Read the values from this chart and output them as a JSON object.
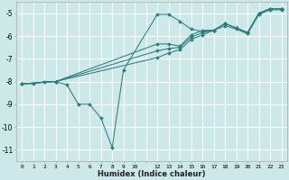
{
  "xlabel": "Humidex (Indice chaleur)",
  "bg_color": "#cce8e8",
  "grid_color": "#ffffff",
  "line_color": "#2e7d7d",
  "xlim": [
    -0.5,
    23.5
  ],
  "ylim": [
    -11.5,
    -4.5
  ],
  "yticks": [
    -11,
    -10,
    -9,
    -8,
    -7,
    -6,
    -5
  ],
  "xtick_show": [
    0,
    1,
    2,
    3,
    4,
    5,
    6,
    7,
    8,
    9,
    10,
    12,
    13,
    14,
    15,
    16,
    17,
    18,
    19,
    20,
    21,
    22,
    23
  ],
  "lines": [
    {
      "x": [
        0,
        1,
        2,
        3,
        4,
        5,
        6,
        7,
        8,
        9,
        12,
        13,
        14,
        15,
        16,
        17,
        18,
        19,
        20,
        21,
        22,
        23
      ],
      "y": [
        -8.1,
        -8.1,
        -8.0,
        -8.0,
        -8.15,
        -9.0,
        -9.0,
        -9.6,
        -10.9,
        -7.5,
        -5.05,
        -5.05,
        -5.35,
        -5.7,
        -5.8,
        -5.75,
        -5.55,
        -5.7,
        -5.9,
        -5.05,
        -4.85,
        -4.85
      ]
    },
    {
      "x": [
        0,
        3,
        12,
        13,
        14,
        15,
        16,
        17,
        18,
        19,
        20,
        21,
        22,
        23
      ],
      "y": [
        -8.1,
        -8.0,
        -6.35,
        -6.35,
        -6.45,
        -5.95,
        -5.75,
        -5.75,
        -5.45,
        -5.65,
        -5.85,
        -5.0,
        -4.8,
        -4.8
      ]
    },
    {
      "x": [
        0,
        3,
        12,
        13,
        14,
        15,
        16,
        17,
        18,
        19,
        20,
        21,
        22,
        23
      ],
      "y": [
        -8.1,
        -8.0,
        -6.65,
        -6.55,
        -6.5,
        -6.05,
        -5.85,
        -5.75,
        -5.45,
        -5.65,
        -5.85,
        -5.0,
        -4.8,
        -4.8
      ]
    },
    {
      "x": [
        0,
        3,
        12,
        13,
        14,
        15,
        16,
        17,
        18,
        19,
        20,
        21,
        22,
        23
      ],
      "y": [
        -8.1,
        -8.0,
        -6.95,
        -6.75,
        -6.6,
        -6.15,
        -5.95,
        -5.75,
        -5.45,
        -5.65,
        -5.85,
        -5.0,
        -4.8,
        -4.8
      ]
    }
  ]
}
